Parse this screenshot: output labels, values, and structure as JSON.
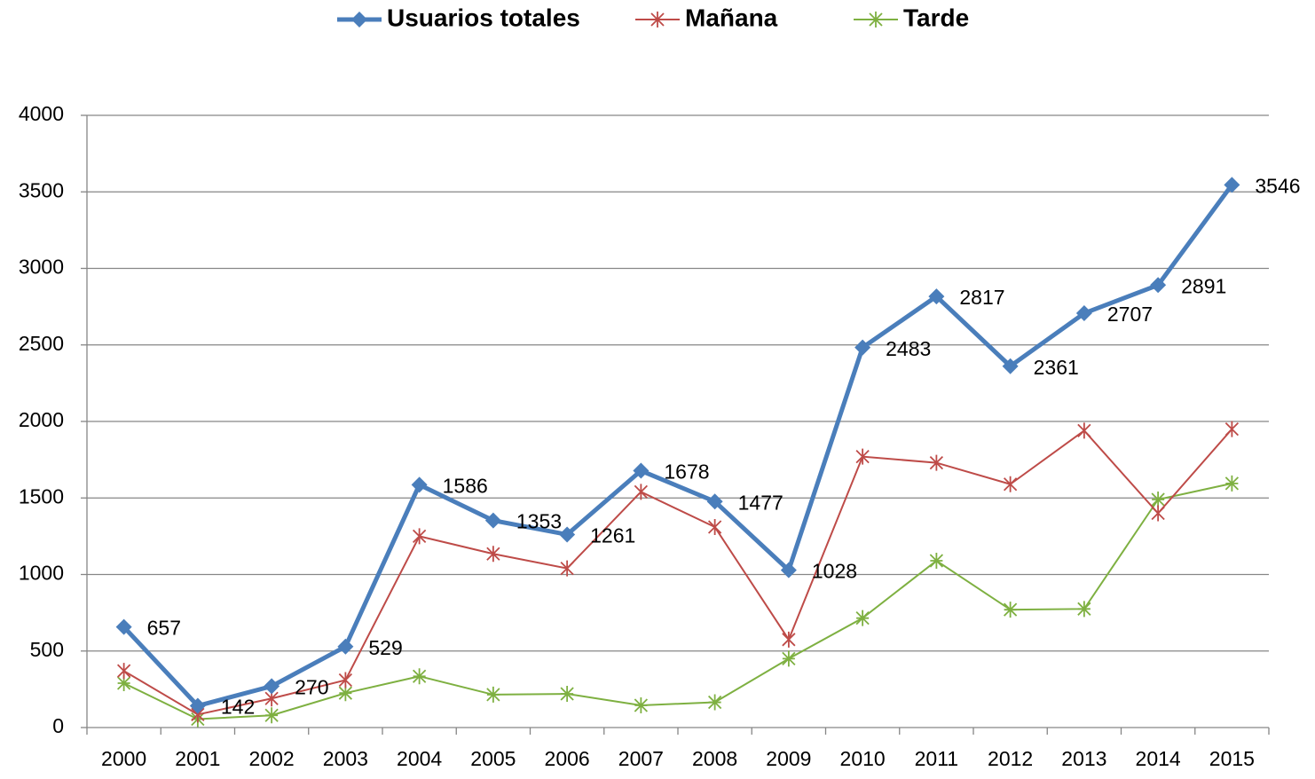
{
  "chart_data": {
    "type": "line",
    "categories": [
      "2000",
      "2001",
      "2002",
      "2003",
      "2004",
      "2005",
      "2006",
      "2007",
      "2008",
      "2009",
      "2010",
      "2011",
      "2012",
      "2013",
      "2014",
      "2015"
    ],
    "series": [
      {
        "name": "Usuarios totales",
        "color": "#4a7ebb",
        "values": [
          657,
          142,
          270,
          529,
          1586,
          1353,
          1261,
          1678,
          1477,
          1028,
          2483,
          2817,
          2361,
          2707,
          2891,
          3546
        ],
        "data_labels": true
      },
      {
        "name": "Mañana",
        "color": "#be4b48",
        "values": [
          370,
          85,
          190,
          310,
          1250,
          1135,
          1040,
          1540,
          1310,
          575,
          1770,
          1730,
          1590,
          1940,
          1400,
          1950
        ]
      },
      {
        "name": "Tarde",
        "color": "#7eb041",
        "values": [
          290,
          55,
          80,
          225,
          335,
          215,
          220,
          145,
          165,
          450,
          715,
          1090,
          770,
          775,
          1490,
          1595
        ]
      }
    ],
    "ylim": [
      0,
      4000
    ],
    "yticks": [
      0,
      500,
      1000,
      1500,
      2000,
      2500,
      3000,
      3500,
      4000
    ],
    "grid": true,
    "legend": "top"
  }
}
